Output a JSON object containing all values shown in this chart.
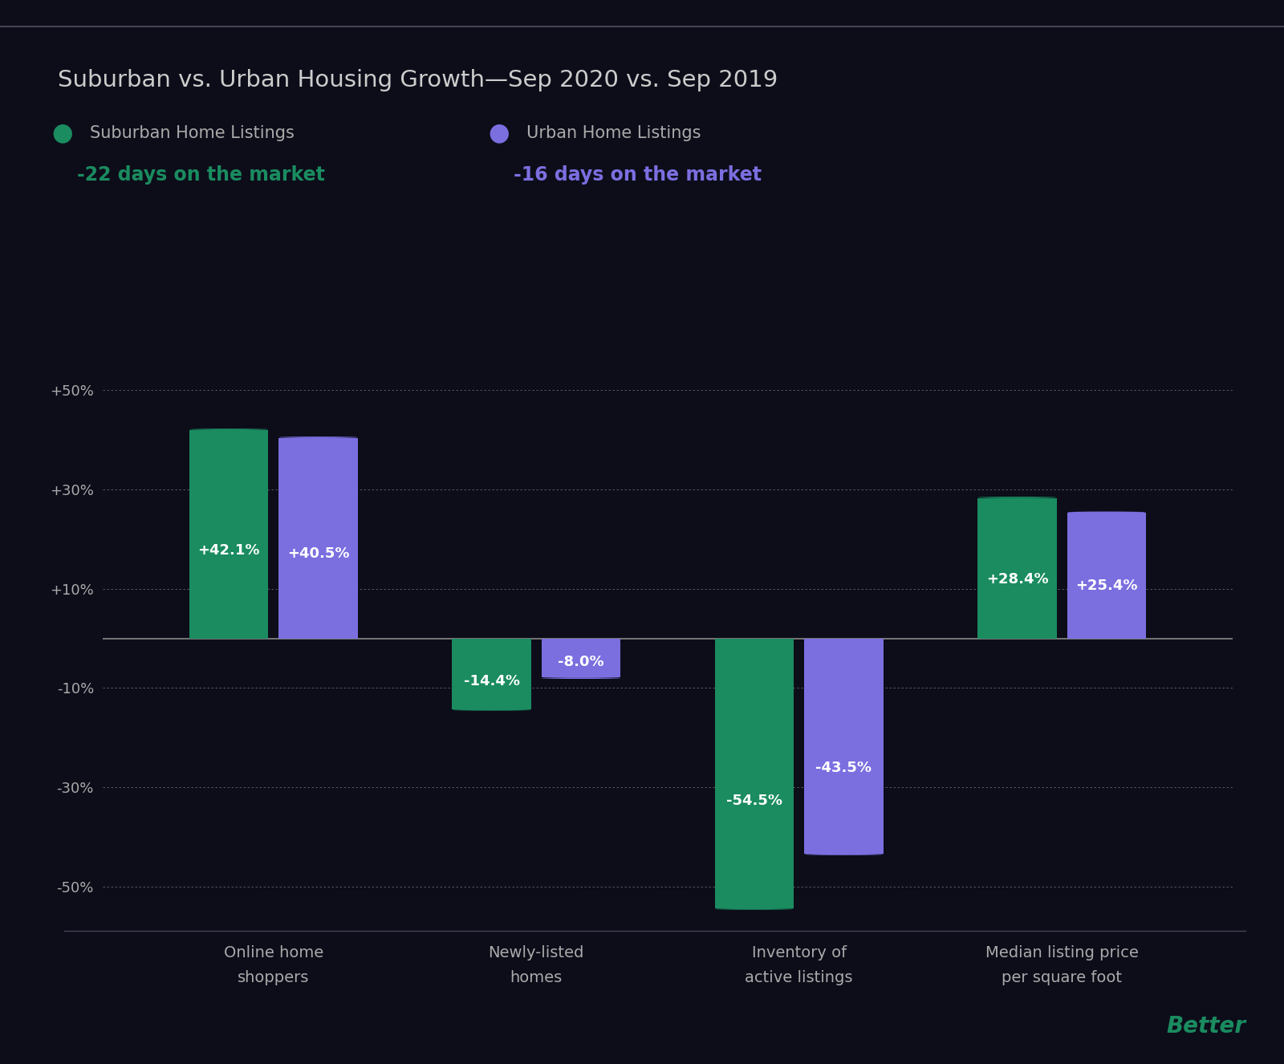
{
  "title": "Suburban vs. Urban Housing Growth—Sep 2020 vs. Sep 2019",
  "background_color": "#0d0d1a",
  "plot_bg_color": "#0d0d1a",
  "grid_color": "#ffffff",
  "axis_color": "#888888",
  "tick_color": "#aaaaaa",
  "zero_line_color": "#888888",
  "title_color": "#cccccc",
  "categories": [
    "Online home\nshoppers",
    "Newly-listed\nhomes",
    "Inventory of\nactive listings",
    "Median listing price\nper square foot"
  ],
  "suburban_values": [
    42.1,
    -14.4,
    -54.5,
    28.4
  ],
  "urban_values": [
    40.5,
    -8.0,
    -43.5,
    25.4
  ],
  "suburban_color": "#1a8c60",
  "urban_color": "#7b6fe0",
  "suburban_label": "Suburban Home Listings",
  "urban_label": "Urban Home Listings",
  "suburban_subtitle": "-22 days on the market",
  "urban_subtitle": "-16 days on the market",
  "suburban_subtitle_color": "#1a8c60",
  "urban_subtitle_color": "#7b6fe0",
  "ylim": [
    -60,
    60
  ],
  "yticks": [
    -50,
    -30,
    -10,
    10,
    30,
    50
  ],
  "ytick_labels": [
    "-50%",
    "-30%",
    "-10%",
    "+10%",
    "+30%",
    "+50%"
  ],
  "bar_width": 0.3,
  "bar_gap": 0.04,
  "label_color": "#ffffff",
  "label_fontsize": 13,
  "title_fontsize": 21,
  "legend_fontsize": 15,
  "subtitle_fontsize": 17,
  "tick_fontsize": 13,
  "category_fontsize": 14,
  "branding_text": "Better",
  "branding_color": "#1a8c60",
  "branding_fontsize": 20
}
